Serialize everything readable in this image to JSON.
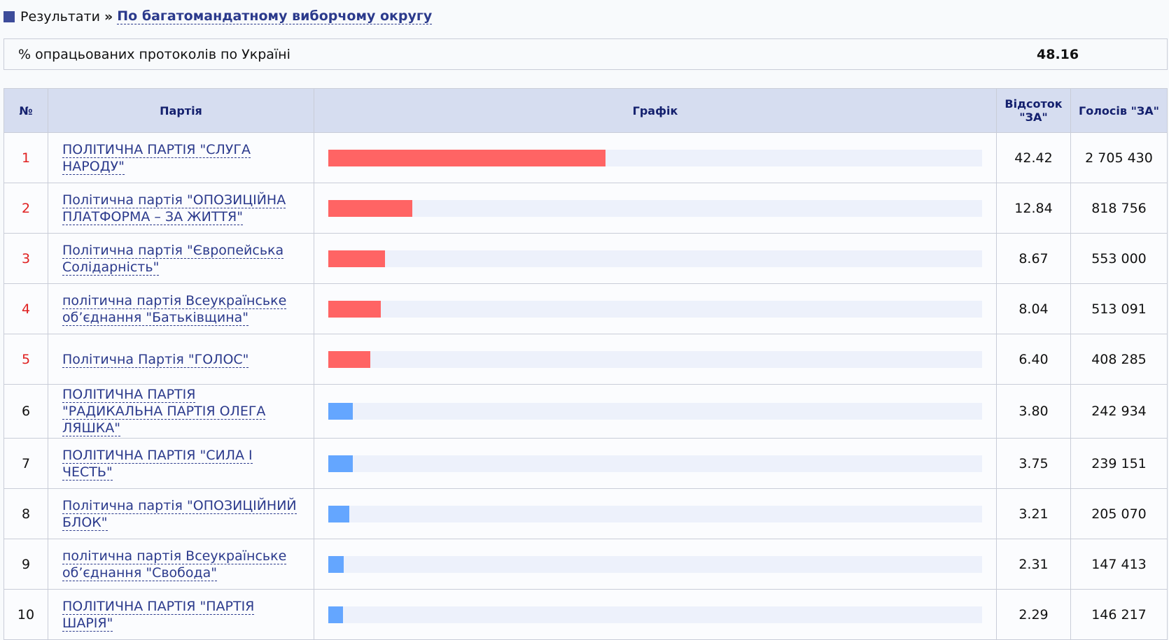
{
  "breadcrumb": {
    "root": "Результати",
    "current": "По багатомандатному виборчому округу"
  },
  "summary": {
    "label": "% опрацьованих протоколів по Україні",
    "value": "48.16"
  },
  "table": {
    "headers": [
      "№",
      "Партія",
      "Графік",
      "Відсоток \"ЗА\"",
      "Голосів \"ЗА\""
    ],
    "rows": [
      {
        "number": "1",
        "party": "ПОЛІТИЧНА ПАРТІЯ \"СЛУГА НАРОДУ\"",
        "percent": "42.42",
        "votes": "2 705 430",
        "bar_color": "#ff6464",
        "number_color": "#e02020"
      },
      {
        "number": "2",
        "party": "Політична партія \"ОПОЗИЦІЙНА ПЛАТФОРМА – ЗА ЖИТТЯ\"",
        "percent": "12.84",
        "votes": "818 756",
        "bar_color": "#ff6464",
        "number_color": "#e02020"
      },
      {
        "number": "3",
        "party": "Політична партія \"Європейська Солідарність\"",
        "percent": "8.67",
        "votes": "553 000",
        "bar_color": "#ff6464",
        "number_color": "#e02020"
      },
      {
        "number": "4",
        "party": "політична партія Всеукраїнське об’єднання \"Батьківщина\"",
        "percent": "8.04",
        "votes": "513 091",
        "bar_color": "#ff6464",
        "number_color": "#e02020"
      },
      {
        "number": "5",
        "party": "Політична Партія \"ГОЛОС\"",
        "percent": "6.40",
        "votes": "408 285",
        "bar_color": "#ff6464",
        "number_color": "#e02020"
      },
      {
        "number": "6",
        "party": "ПОЛІТИЧНА ПАРТІЯ \"РАДИКАЛЬНА ПАРТІЯ ОЛЕГА ЛЯШКА\"",
        "percent": "3.80",
        "votes": "242 934",
        "bar_color": "#64a6ff",
        "number_color": "#111111"
      },
      {
        "number": "7",
        "party": "ПОЛІТИЧНА ПАРТІЯ \"СИЛА І ЧЕСТЬ\"",
        "percent": "3.75",
        "votes": "239 151",
        "bar_color": "#64a6ff",
        "number_color": "#111111"
      },
      {
        "number": "8",
        "party": "Політична партія \"ОПОЗИЦІЙНИЙ БЛОК\"",
        "percent": "3.21",
        "votes": "205 070",
        "bar_color": "#64a6ff",
        "number_color": "#111111"
      },
      {
        "number": "9",
        "party": "політична партія Всеукраїнське об’єднання \"Свобода\"",
        "percent": "2.31",
        "votes": "147 413",
        "bar_color": "#64a6ff",
        "number_color": "#111111"
      },
      {
        "number": "10",
        "party": "ПОЛІТИЧНА ПАРТІЯ \"ПАРТІЯ ШАРІЯ\"",
        "percent": "2.29",
        "votes": "146 217",
        "bar_color": "#64a6ff",
        "number_color": "#111111"
      }
    ]
  }
}
